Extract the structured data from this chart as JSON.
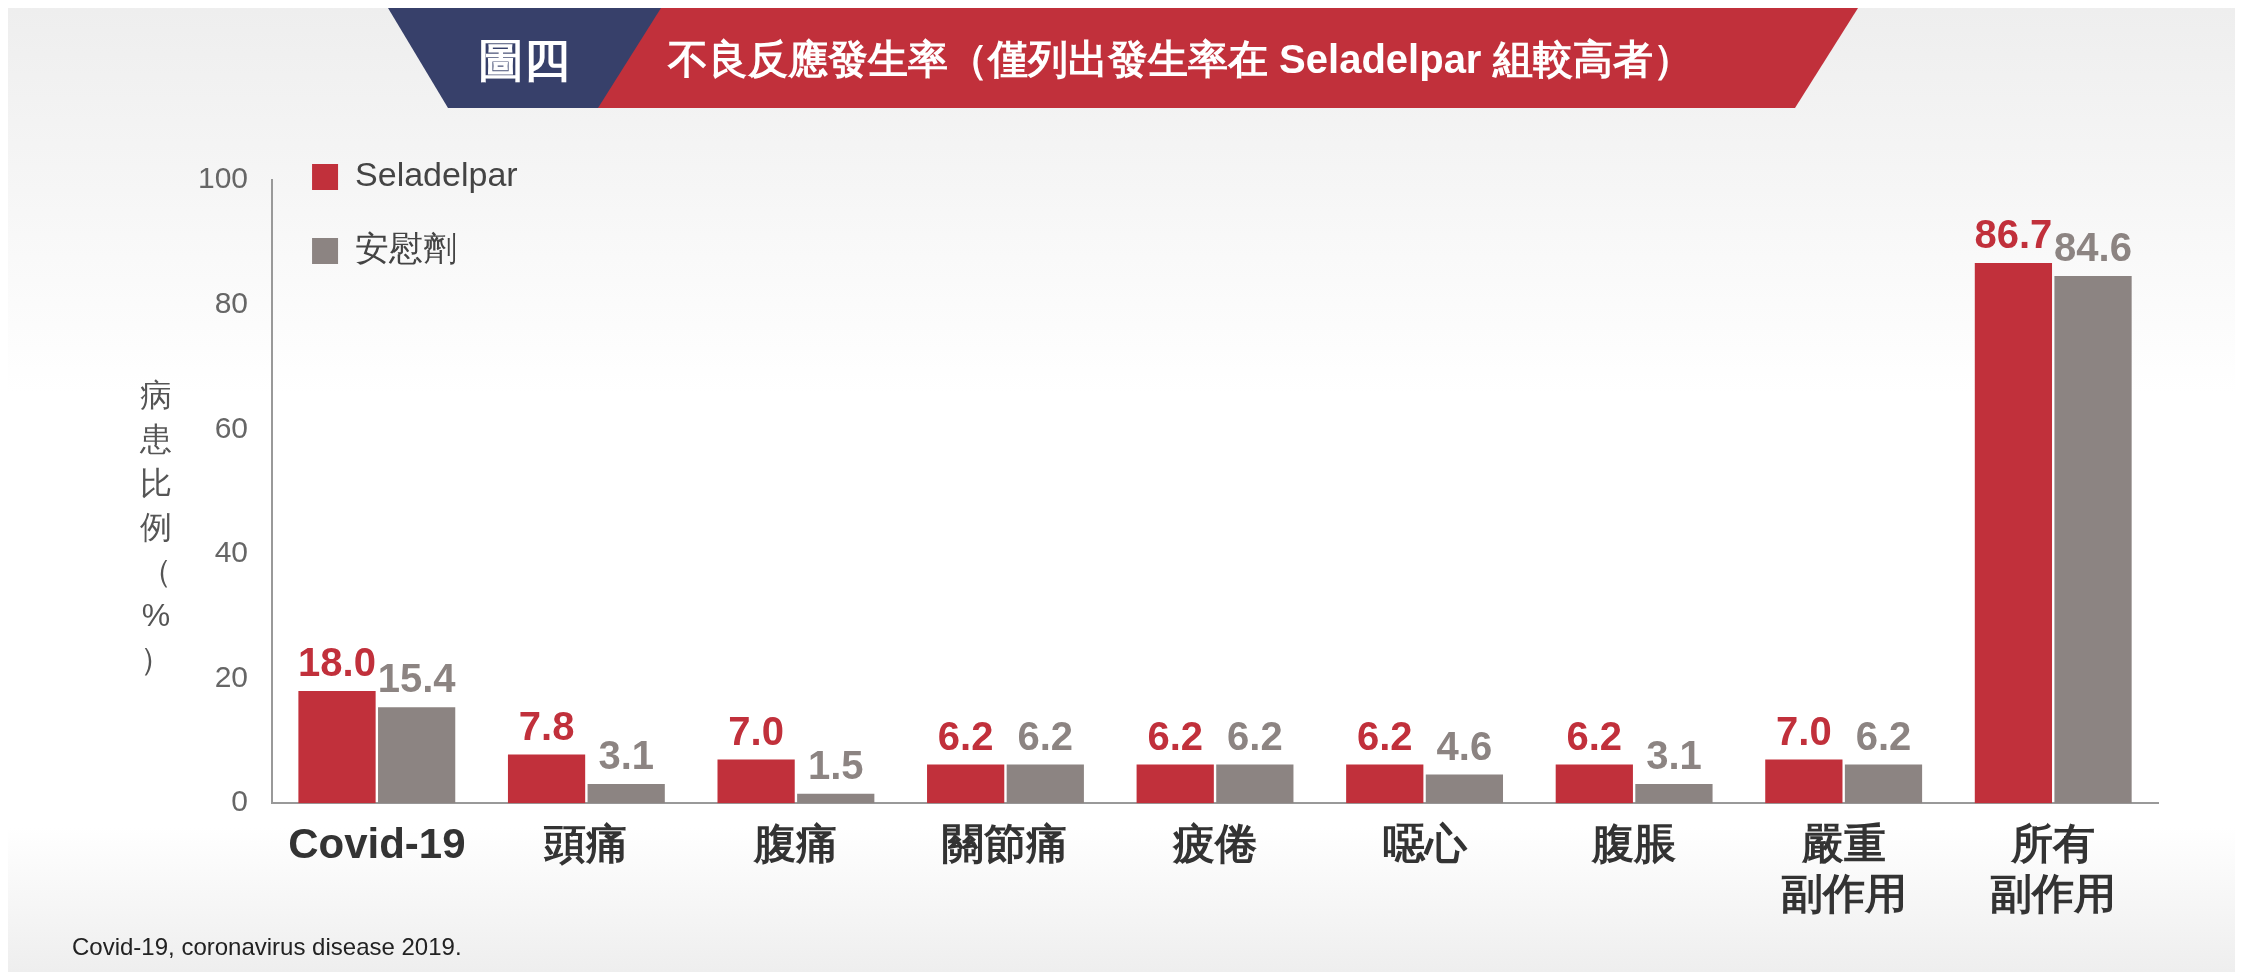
{
  "chart_data": {
    "type": "bar",
    "title": "圖四",
    "subtitle": "不良反應發生率（僅列出發生率在 Seladelpar 組較高者）",
    "ylabel": "病患比例（%）",
    "categories": [
      "Covid-19",
      "頭痛",
      "腹痛",
      "關節痛",
      "疲倦",
      "噁心",
      "腹脹",
      "嚴重副作用",
      "所有副作用"
    ],
    "series": [
      {
        "name": "Seladelpar",
        "color": "#c1303b",
        "values": [
          18,
          7.8,
          7,
          6.2,
          6.2,
          6.2,
          6.2,
          7,
          86.7
        ],
        "value_labels": [
          "18.0",
          "7.8",
          "7.0",
          "6.2",
          "6.2",
          "6.2",
          "6.2",
          "7.0",
          "86.7"
        ]
      },
      {
        "name": "安慰劑",
        "color": "#8c8482",
        "values": [
          15.4,
          3.1,
          1.5,
          6.2,
          6.2,
          4.6,
          3.1,
          6.2,
          84.6
        ],
        "value_labels": [
          "15.4",
          "3.1",
          "1.5",
          "6.2",
          "6.2",
          "4.6",
          "3.1",
          "6.2",
          "84.6"
        ]
      }
    ],
    "ylim": [
      0,
      100
    ],
    "yticks": [
      0,
      20,
      40,
      60,
      80,
      100
    ],
    "grid": false,
    "legend": "top left",
    "annotations": [
      "Covid-19, coronavirus disease 2019."
    ]
  }
}
